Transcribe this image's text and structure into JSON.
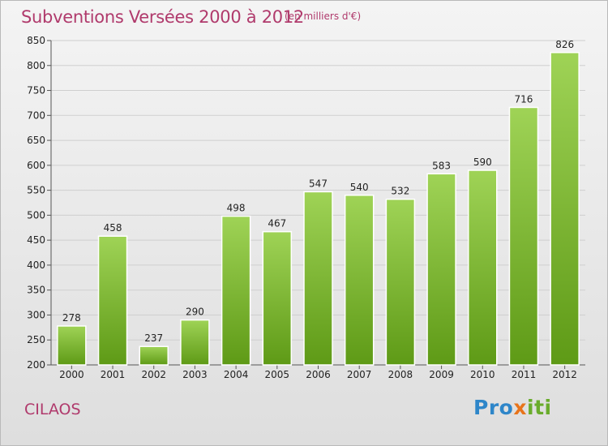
{
  "header": {
    "title": "Subventions Versées 2000 à 2012",
    "unit_note": "(en milliers d'€)"
  },
  "footer": {
    "town": "CILAOS",
    "logo_letters": [
      {
        "ch": "P",
        "color": "#2e86c9"
      },
      {
        "ch": "r",
        "color": "#2e86c9"
      },
      {
        "ch": "o",
        "color": "#2e86c9"
      },
      {
        "ch": "x",
        "color": "#e8741b"
      },
      {
        "ch": "i",
        "color": "#6aac2c"
      },
      {
        "ch": "t",
        "color": "#6aac2c"
      },
      {
        "ch": "i",
        "color": "#6aac2c"
      }
    ]
  },
  "chart_data": {
    "type": "bar",
    "categories": [
      "2000",
      "2001",
      "2002",
      "2003",
      "2004",
      "2005",
      "2006",
      "2007",
      "2008",
      "2009",
      "2010",
      "2011",
      "2012"
    ],
    "values": [
      278,
      458,
      237,
      290,
      498,
      467,
      547,
      540,
      532,
      583,
      590,
      716,
      826
    ],
    "title": "Subventions Versées 2000 à 2012",
    "xlabel": "",
    "ylabel": "",
    "ylim": [
      200,
      850
    ],
    "yticks": [
      200,
      250,
      300,
      350,
      400,
      450,
      500,
      550,
      600,
      650,
      700,
      750,
      800,
      850
    ],
    "grid": true,
    "colors": {
      "bar_light": "#9fd356",
      "bar_dark": "#5e9a16",
      "grid": "#cfcfcf",
      "title": "#b03a6c"
    }
  }
}
